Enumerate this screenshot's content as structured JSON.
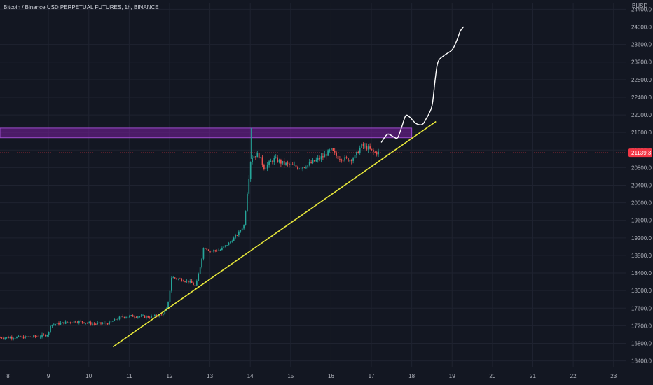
{
  "header": {
    "title": "Bitcoin / Binance USD PERPETUAL FUTURES, 1h, BINANCE",
    "currency": "BUSD"
  },
  "colors": {
    "background": "#131722",
    "grid": "#1f2330",
    "up_candle": "#26a69a",
    "down_candle": "#ef5350",
    "zone_fill": "#7b1fa2",
    "zone_stroke": "#9c4dcc",
    "trendline": "#e8e83a",
    "projection": "#ffffff",
    "last_price": "#f23645"
  },
  "chart_data": {
    "type": "candlestick",
    "title": "Bitcoin / Binance USD PERPETUAL FUTURES, 1h, BINANCE",
    "xlabel": "",
    "ylabel": "BUSD",
    "x_ticks": [
      "8",
      "9",
      "10",
      "11",
      "12",
      "13",
      "14",
      "15",
      "16",
      "17",
      "18",
      "19",
      "20",
      "21",
      "22",
      "23"
    ],
    "y_ticks": [
      16400,
      16800,
      17200,
      17600,
      18000,
      18400,
      18800,
      19200,
      19600,
      20000,
      20400,
      20800,
      21200,
      21600,
      22000,
      22400,
      22800,
      23200,
      23600,
      24000,
      24400
    ],
    "y_tick_labels": [
      "16400.0",
      "16800.0",
      "17200.0",
      "17600.0",
      "18000.0",
      "18400.0",
      "18800.0",
      "19200.0",
      "19600.0",
      "20000.0",
      "20400.0",
      "20800.0",
      "21200.0",
      "21600.0",
      "22000.0",
      "22400.0",
      "22800.0",
      "23200.0",
      "23600.0",
      "24000.0",
      "24400.0"
    ],
    "ylim": [
      16250,
      24550
    ],
    "xlim_days": [
      7.8,
      23.3
    ],
    "last_price": 21139.3,
    "last_price_label": "21139.3",
    "grid": true,
    "resistance_zone": {
      "low": 21480,
      "high": 21700,
      "x_start_day": 7.8,
      "x_end_day": 18.0
    },
    "trendline": {
      "start": {
        "day": 10.6,
        "price": 16720
      },
      "end": {
        "day": 18.6,
        "price": 21850
      }
    },
    "projection": [
      {
        "day": 17.25,
        "price": 21380
      },
      {
        "day": 17.4,
        "price": 21560
      },
      {
        "day": 17.55,
        "price": 21500
      },
      {
        "day": 17.65,
        "price": 21480
      },
      {
        "day": 17.75,
        "price": 21720
      },
      {
        "day": 17.85,
        "price": 21980
      },
      {
        "day": 17.95,
        "price": 21950
      },
      {
        "day": 18.1,
        "price": 21810
      },
      {
        "day": 18.25,
        "price": 21780
      },
      {
        "day": 18.35,
        "price": 21900
      },
      {
        "day": 18.5,
        "price": 22200
      },
      {
        "day": 18.58,
        "price": 22800
      },
      {
        "day": 18.65,
        "price": 23200
      },
      {
        "day": 18.8,
        "price": 23350
      },
      {
        "day": 19.0,
        "price": 23480
      },
      {
        "day": 19.12,
        "price": 23700
      },
      {
        "day": 19.2,
        "price": 23900
      },
      {
        "day": 19.28,
        "price": 24000
      }
    ],
    "price_path": [
      [
        7.8,
        16930
      ],
      [
        8.4,
        16940
      ],
      [
        8.8,
        16960
      ],
      [
        9.0,
        17010
      ],
      [
        9.05,
        17220
      ],
      [
        9.4,
        17270
      ],
      [
        9.7,
        17300
      ],
      [
        9.9,
        17280
      ],
      [
        10.1,
        17240
      ],
      [
        10.5,
        17260
      ],
      [
        10.8,
        17400
      ],
      [
        11.1,
        17420
      ],
      [
        11.5,
        17400
      ],
      [
        11.8,
        17440
      ],
      [
        11.95,
        17600
      ],
      [
        12.05,
        18300
      ],
      [
        12.3,
        18250
      ],
      [
        12.5,
        18200
      ],
      [
        12.65,
        18100
      ],
      [
        12.75,
        18500
      ],
      [
        12.85,
        19000
      ],
      [
        13.0,
        18900
      ],
      [
        13.25,
        18920
      ],
      [
        13.5,
        19100
      ],
      [
        13.7,
        19300
      ],
      [
        13.85,
        19500
      ],
      [
        13.93,
        20300
      ],
      [
        14.02,
        21050
      ],
      [
        14.2,
        21100
      ],
      [
        14.35,
        20800
      ],
      [
        14.6,
        21000
      ],
      [
        14.8,
        20900
      ],
      [
        15.0,
        20850
      ],
      [
        15.2,
        20800
      ],
      [
        15.4,
        20850
      ],
      [
        15.6,
        20950
      ],
      [
        15.8,
        21050
      ],
      [
        16.0,
        21200
      ],
      [
        16.15,
        21050
      ],
      [
        16.3,
        21000
      ],
      [
        16.45,
        20980
      ],
      [
        16.6,
        21050
      ],
      [
        16.75,
        21300
      ],
      [
        16.9,
        21250
      ],
      [
        17.05,
        21150
      ],
      [
        17.2,
        21139
      ]
    ]
  }
}
